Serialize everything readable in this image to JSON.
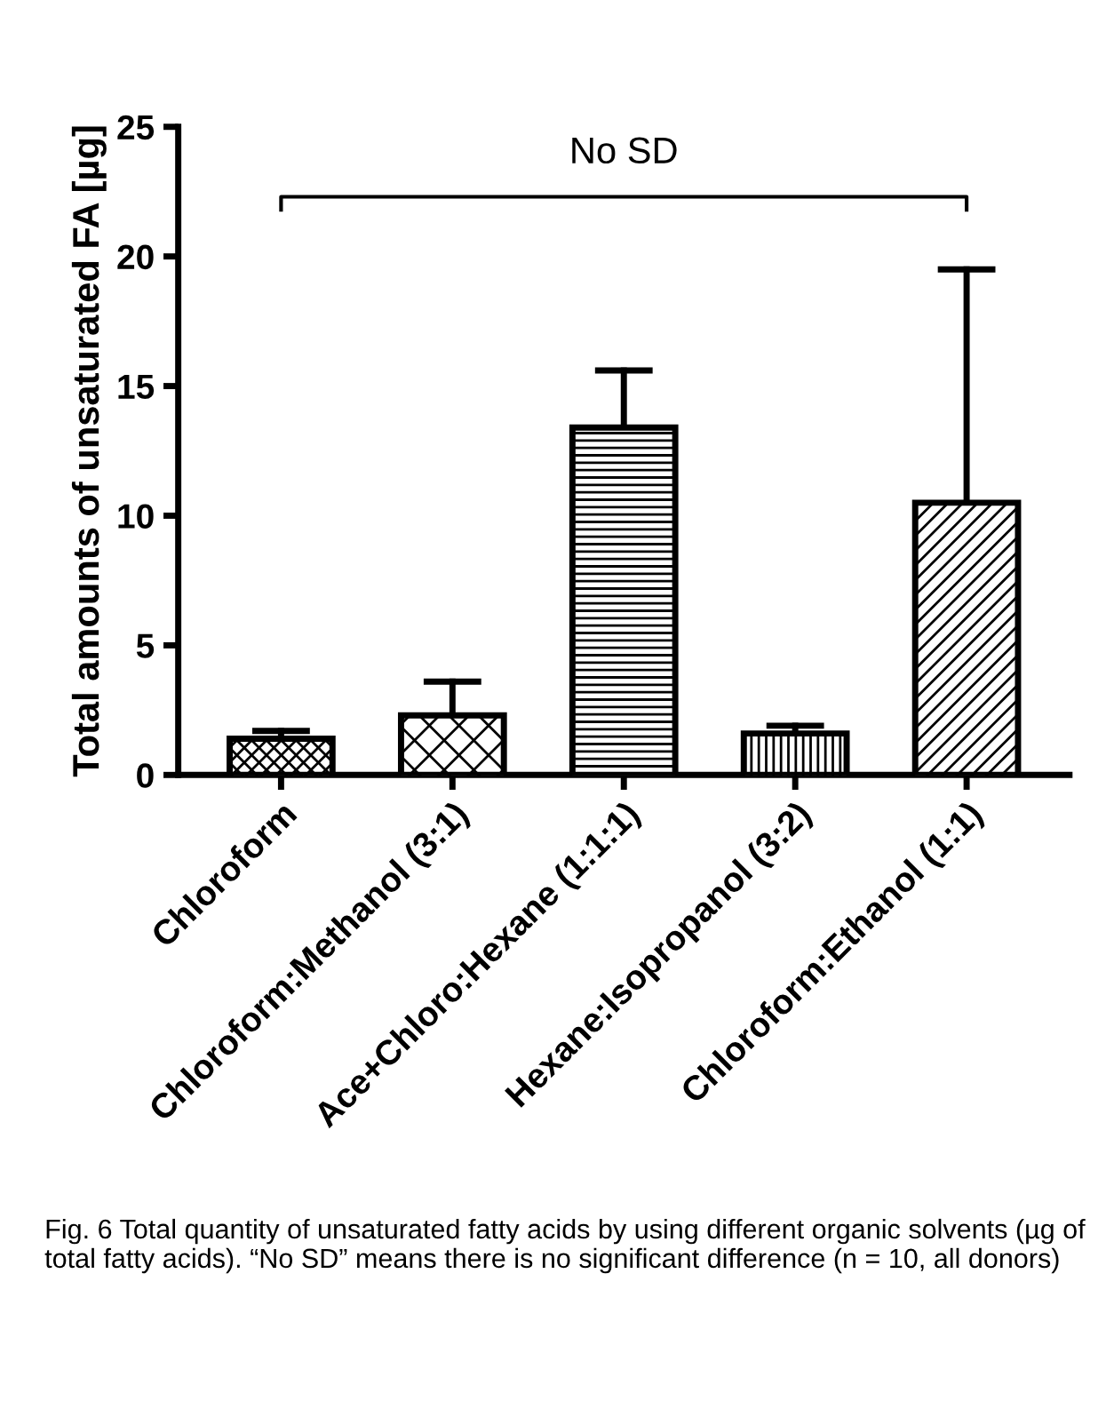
{
  "chart_data": {
    "type": "bar",
    "ylabel": "Total amounts of unsaturated FA [µg]",
    "categories": [
      "Chloroform",
      "Chloroform:Methanol (3:1)",
      "Ace+Chloro:Hexane (1:1:1)",
      "Hexane:Isopropanol (3:2)",
      "Chloroform:Ethanol (1:1)"
    ],
    "values": [
      1.4,
      2.3,
      13.4,
      1.6,
      10.5
    ],
    "errors": [
      [
        1.4,
        1.7
      ],
      [
        2.3,
        3.6
      ],
      [
        13.4,
        15.6
      ],
      [
        1.6,
        1.9
      ],
      [
        10.5,
        19.5
      ]
    ],
    "ylim": [
      0,
      25
    ],
    "yticks": [
      0,
      5,
      10,
      15,
      20,
      25
    ],
    "grid": false,
    "annotations": [
      "No SD",
      "Fig. 6 Total quantity of unsaturated fatty acids by using different organic solvents (µg of total fatty acids). “No SD” means there is no significant difference (n = 10, all donors)"
    ]
  }
}
